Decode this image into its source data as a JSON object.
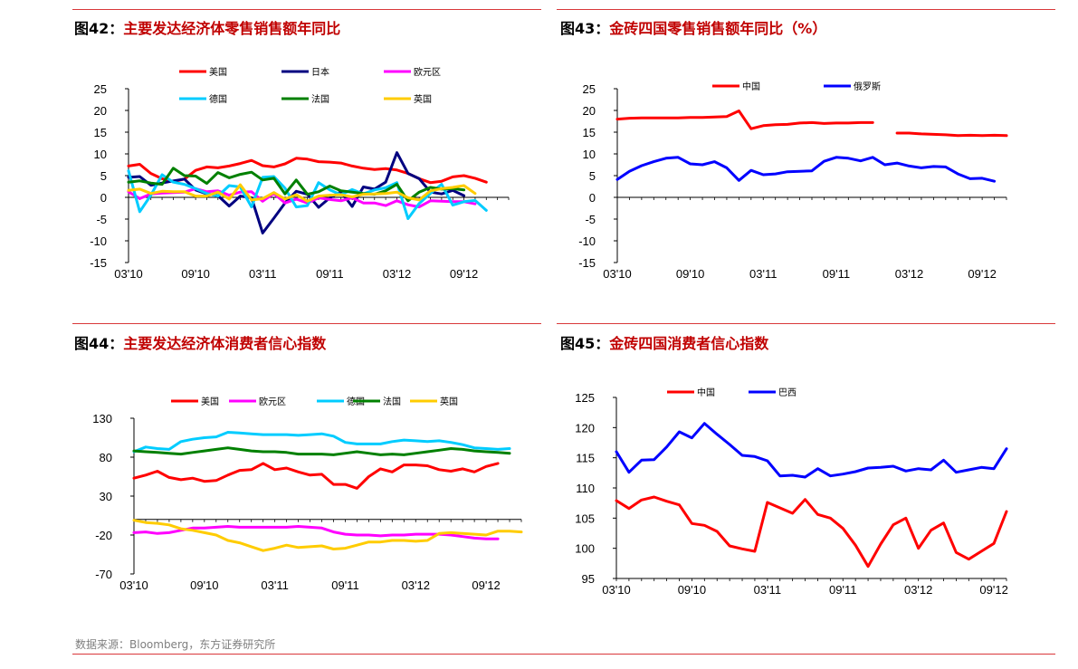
{
  "panels": [
    {
      "prefix": "图42：",
      "title": "主要发达经济体零售销售额年同比",
      "chart_data": {
        "type": "line",
        "x": [
          "03'10",
          "04'10",
          "05'10",
          "06'10",
          "07'10",
          "08'10",
          "09'10",
          "10'10",
          "11'10",
          "12'10",
          "01'11",
          "02'11",
          "03'11",
          "04'11",
          "05'11",
          "06'11",
          "07'11",
          "08'11",
          "09'11",
          "10'11",
          "11'11",
          "12'11",
          "01'12",
          "02'12",
          "03'12",
          "04'12",
          "05'12",
          "06'12",
          "07'12",
          "08'12",
          "09'12",
          "10'12",
          "11'12",
          "12'12",
          "01'13"
        ],
        "tick_labels": [
          "03'10",
          "09'10",
          "03'11",
          "09'11",
          "03'12",
          "09'12"
        ],
        "ylim": [
          -15,
          25
        ],
        "yticks": [
          -15,
          -10,
          -5,
          0,
          5,
          10,
          15,
          20,
          25
        ],
        "series": [
          {
            "name": "美国",
            "color": "#ff0000",
            "values": [
              7.2,
              7.6,
              5.5,
              4.3,
              3.6,
              4.2,
              6.2,
              7.0,
              6.8,
              7.2,
              7.8,
              8.5,
              7.3,
              7.0,
              7.7,
              9.0,
              8.8,
              8.2,
              8.1,
              7.9,
              7.2,
              6.7,
              6.4,
              6.6,
              6.3,
              5.5,
              4.3,
              3.4,
              3.7,
              4.7,
              5.0,
              4.4,
              3.5,
              null,
              null
            ]
          },
          {
            "name": "日本",
            "color": "#000080",
            "values": [
              4.6,
              4.8,
              2.8,
              3.3,
              3.8,
              4.2,
              1.7,
              0.8,
              0.4,
              -2.0,
              0.3,
              -0.1,
              -8.2,
              -4.8,
              -1.3,
              1.4,
              0.7,
              -2.3,
              -0.1,
              1.3,
              -2.1,
              2.4,
              1.9,
              3.5,
              10.3,
              5.5,
              4.3,
              1.2,
              0.8,
              1.6,
              0.4,
              null,
              null,
              null,
              null
            ]
          },
          {
            "name": "欧元区",
            "color": "#ff00ff",
            "values": [
              1.3,
              -0.3,
              0.8,
              1.0,
              1.1,
              1.2,
              2.0,
              1.3,
              1.5,
              0.5,
              1.2,
              1.3,
              -0.9,
              0.9,
              -1.3,
              -0.4,
              -1.3,
              -0.1,
              -0.5,
              -0.8,
              -0.1,
              -1.3,
              -1.3,
              -1.9,
              -0.8,
              -1.7,
              -2.2,
              -0.8,
              -0.9,
              -1.0,
              -1.0,
              -1.5,
              null,
              null,
              null
            ]
          },
          {
            "name": "德国",
            "color": "#00ccff",
            "values": [
              6.1,
              -3.3,
              0.5,
              5.2,
              3.5,
              3.0,
              2.0,
              0.9,
              0.3,
              2.7,
              2.4,
              -2.2,
              4.6,
              4.8,
              2.1,
              -2.2,
              -1.9,
              3.4,
              1.7,
              0.6,
              1.8,
              0.8,
              1.7,
              2.2,
              3.4,
              -4.9,
              -1.4,
              0.9,
              3.0,
              -1.8,
              -1.0,
              -0.7,
              -3.0,
              null,
              null
            ]
          },
          {
            "name": "法国",
            "color": "#008000",
            "values": [
              3.5,
              3.8,
              3.3,
              3.0,
              6.7,
              5.0,
              4.9,
              3.2,
              5.7,
              4.5,
              5.3,
              5.8,
              4.0,
              4.4,
              0.8,
              4.0,
              0.7,
              1.3,
              2.6,
              1.5,
              1.2,
              0.9,
              0.7,
              1.5,
              3.0,
              -0.8,
              1.2,
              2.3,
              1.9,
              2.0,
              1.7,
              null,
              null,
              null,
              null
            ]
          },
          {
            "name": "英国",
            "color": "#ffcc00",
            "values": [
              1.6,
              1.9,
              0.9,
              1.4,
              1.3,
              1.3,
              0.3,
              0.3,
              1.2,
              -0.4,
              2.9,
              -0.6,
              -0.3,
              1.1,
              -0.4,
              0.6,
              -0.9,
              0.3,
              0.5,
              0.6,
              0.1,
              0.7,
              0.8,
              0.9,
              1.2,
              -0.1,
              -0.6,
              1.5,
              2.0,
              2.3,
              2.7,
              0.9,
              null,
              null,
              null
            ]
          }
        ]
      }
    },
    {
      "prefix": "图43：",
      "title": "金砖四国零售销售额年同比（%）",
      "chart_data": {
        "type": "line",
        "x": [
          "03'10",
          "04'10",
          "05'10",
          "06'10",
          "07'10",
          "08'10",
          "09'10",
          "10'10",
          "11'10",
          "12'10",
          "01'11",
          "02'11",
          "03'11",
          "04'11",
          "05'11",
          "06'11",
          "07'11",
          "08'11",
          "09'11",
          "10'11",
          "11'11",
          "12'11",
          "01'12",
          "02'12",
          "03'12",
          "04'12",
          "05'12",
          "06'12",
          "07'12",
          "08'12",
          "09'12",
          "10'12",
          "11'12"
        ],
        "tick_labels": [
          "03'10",
          "09'10",
          "03'11",
          "09'11",
          "03'12",
          "09'12"
        ],
        "ylim": [
          -15,
          25
        ],
        "yticks": [
          -15,
          -10,
          -5,
          0,
          5,
          10,
          15,
          20,
          25
        ],
        "series": [
          {
            "name": "中国",
            "color": "#ff0000",
            "values": [
              18.0,
              18.2,
              18.3,
              18.3,
              18.3,
              18.3,
              18.4,
              18.4,
              18.5,
              18.6,
              19.9,
              15.8,
              16.5,
              16.7,
              16.8,
              17.1,
              17.2,
              17.0,
              17.1,
              17.1,
              17.2,
              17.2,
              null,
              14.8,
              14.8,
              14.6,
              14.5,
              14.4,
              14.2,
              14.3,
              14.2,
              14.3,
              14.2
            ]
          },
          {
            "name": "俄罗斯",
            "color": "#0000ff",
            "values": [
              4.1,
              6.0,
              7.3,
              8.2,
              9.0,
              9.2,
              7.7,
              7.5,
              8.2,
              6.8,
              3.9,
              6.2,
              5.2,
              5.4,
              5.9,
              6.0,
              6.1,
              8.3,
              9.2,
              9.0,
              8.4,
              9.2,
              7.5,
              7.9,
              7.2,
              6.8,
              7.1,
              7.0,
              5.4,
              4.3,
              4.4,
              3.7,
              null
            ]
          }
        ]
      }
    },
    {
      "prefix": "图44：",
      "title": "主要发达经济体消费者信心指数",
      "chart_data": {
        "type": "line",
        "x": [
          "03'10",
          "04'10",
          "05'10",
          "06'10",
          "07'10",
          "08'10",
          "09'10",
          "10'10",
          "11'10",
          "12'10",
          "01'11",
          "02'11",
          "03'11",
          "04'11",
          "05'11",
          "06'11",
          "07'11",
          "08'11",
          "09'11",
          "10'11",
          "11'11",
          "12'11",
          "01'12",
          "02'12",
          "03'12",
          "04'12",
          "05'12",
          "06'12",
          "07'12",
          "08'12",
          "09'12",
          "10'12",
          "11'12",
          "12'12"
        ],
        "tick_labels": [
          "03'10",
          "09'10",
          "03'11",
          "09'11",
          "03'12",
          "09'12"
        ],
        "ylim": [
          -70,
          130
        ],
        "yticks": [
          -70,
          -20,
          30,
          80,
          130
        ],
        "series": [
          {
            "name": "美国",
            "color": "#ff0000",
            "values": [
              53,
              57,
              62,
              54,
              51,
              53,
              49,
              50,
              57,
              63,
              64,
              72,
              64,
              66,
              61,
              57,
              58,
              45,
              45,
              40,
              55,
              65,
              61,
              70,
              70,
              69,
              64,
              62,
              65,
              61,
              68,
              72,
              null,
              null
            ]
          },
          {
            "name": "欧元区",
            "color": "#ff00ff",
            "values": [
              -17,
              -16,
              -18,
              -17,
              -14,
              -11,
              -11,
              -10,
              -9,
              -10,
              -10,
              -10,
              -10,
              -10,
              -9,
              -10,
              -11,
              -16,
              -19,
              -20,
              -20,
              -21,
              -20,
              -20,
              -19,
              -19,
              -19,
              -20,
              -22,
              -24,
              -25,
              -25,
              null,
              null
            ]
          },
          {
            "name": "德国",
            "color": "#00ccff",
            "values": [
              87,
              93,
              91,
              90,
              100,
              103,
              105,
              106,
              112,
              111,
              110,
              109,
              109,
              109,
              108,
              109,
              110,
              107,
              99,
              97,
              97,
              97,
              100,
              102,
              101,
              100,
              101,
              99,
              96,
              92,
              91,
              90,
              91,
              null
            ]
          },
          {
            "name": "法国",
            "color": "#008000",
            "values": [
              88,
              87,
              86,
              85,
              84,
              86,
              88,
              90,
              92,
              90,
              88,
              87,
              87,
              86,
              84,
              84,
              84,
              83,
              85,
              87,
              85,
              83,
              84,
              83,
              85,
              87,
              89,
              91,
              90,
              88,
              87,
              86,
              85,
              null
            ]
          },
          {
            "name": "英国",
            "color": "#ffcc00",
            "values": [
              -1,
              -4,
              -5,
              -7,
              -12,
              -14,
              -17,
              -20,
              -27,
              -30,
              -35,
              -40,
              -37,
              -33,
              -36,
              -35,
              -34,
              -38,
              -37,
              -33,
              -29,
              -29,
              -27,
              -27,
              -28,
              -27,
              -18,
              -17,
              -18,
              -19,
              -20,
              -15,
              -15,
              -16
            ]
          }
        ]
      }
    },
    {
      "prefix": "图45：",
      "title": "金砖四国消费者信心指数",
      "chart_data": {
        "type": "line",
        "x": [
          "03'10",
          "04'10",
          "05'10",
          "06'10",
          "07'10",
          "08'10",
          "09'10",
          "10'10",
          "11'10",
          "12'10",
          "01'11",
          "02'11",
          "03'11",
          "04'11",
          "05'11",
          "06'11",
          "07'11",
          "08'11",
          "09'11",
          "10'11",
          "11'11",
          "12'11",
          "01'12",
          "02'12",
          "03'12",
          "04'12",
          "05'12",
          "06'12",
          "07'12",
          "08'12",
          "09'12",
          "10'12"
        ],
        "tick_labels": [
          "03'10",
          "09'10",
          "03'11",
          "09'11",
          "03'12",
          "09'12"
        ],
        "ylim": [
          95,
          125
        ],
        "yticks": [
          95,
          100,
          105,
          110,
          115,
          120,
          125
        ],
        "series": [
          {
            "name": "中国",
            "color": "#ff0000",
            "values": [
              107.9,
              106.6,
              108.0,
              108.5,
              107.8,
              107.2,
              104.1,
              103.8,
              102.8,
              100.4,
              99.9,
              99.5,
              107.6,
              106.7,
              105.8,
              108.1,
              105.6,
              105.0,
              103.3,
              100.5,
              97.0,
              100.7,
              103.9,
              105.0,
              100.0,
              103.0,
              104.2,
              99.3,
              98.2,
              99.5,
              100.8,
              106.1
            ]
          },
          {
            "name": "巴西",
            "color": "#0000ff",
            "values": [
              116.0,
              112.6,
              114.6,
              114.7,
              116.8,
              119.3,
              118.3,
              120.7,
              118.9,
              117.2,
              115.4,
              115.2,
              114.5,
              112.0,
              112.1,
              111.8,
              113.2,
              112.0,
              112.3,
              112.7,
              113.3,
              113.4,
              113.6,
              112.8,
              113.2,
              113.0,
              114.6,
              112.6,
              113.0,
              113.4,
              113.2,
              116.5
            ]
          }
        ]
      }
    }
  ],
  "source": "数据来源：Bloomberg，东方证券研究所"
}
